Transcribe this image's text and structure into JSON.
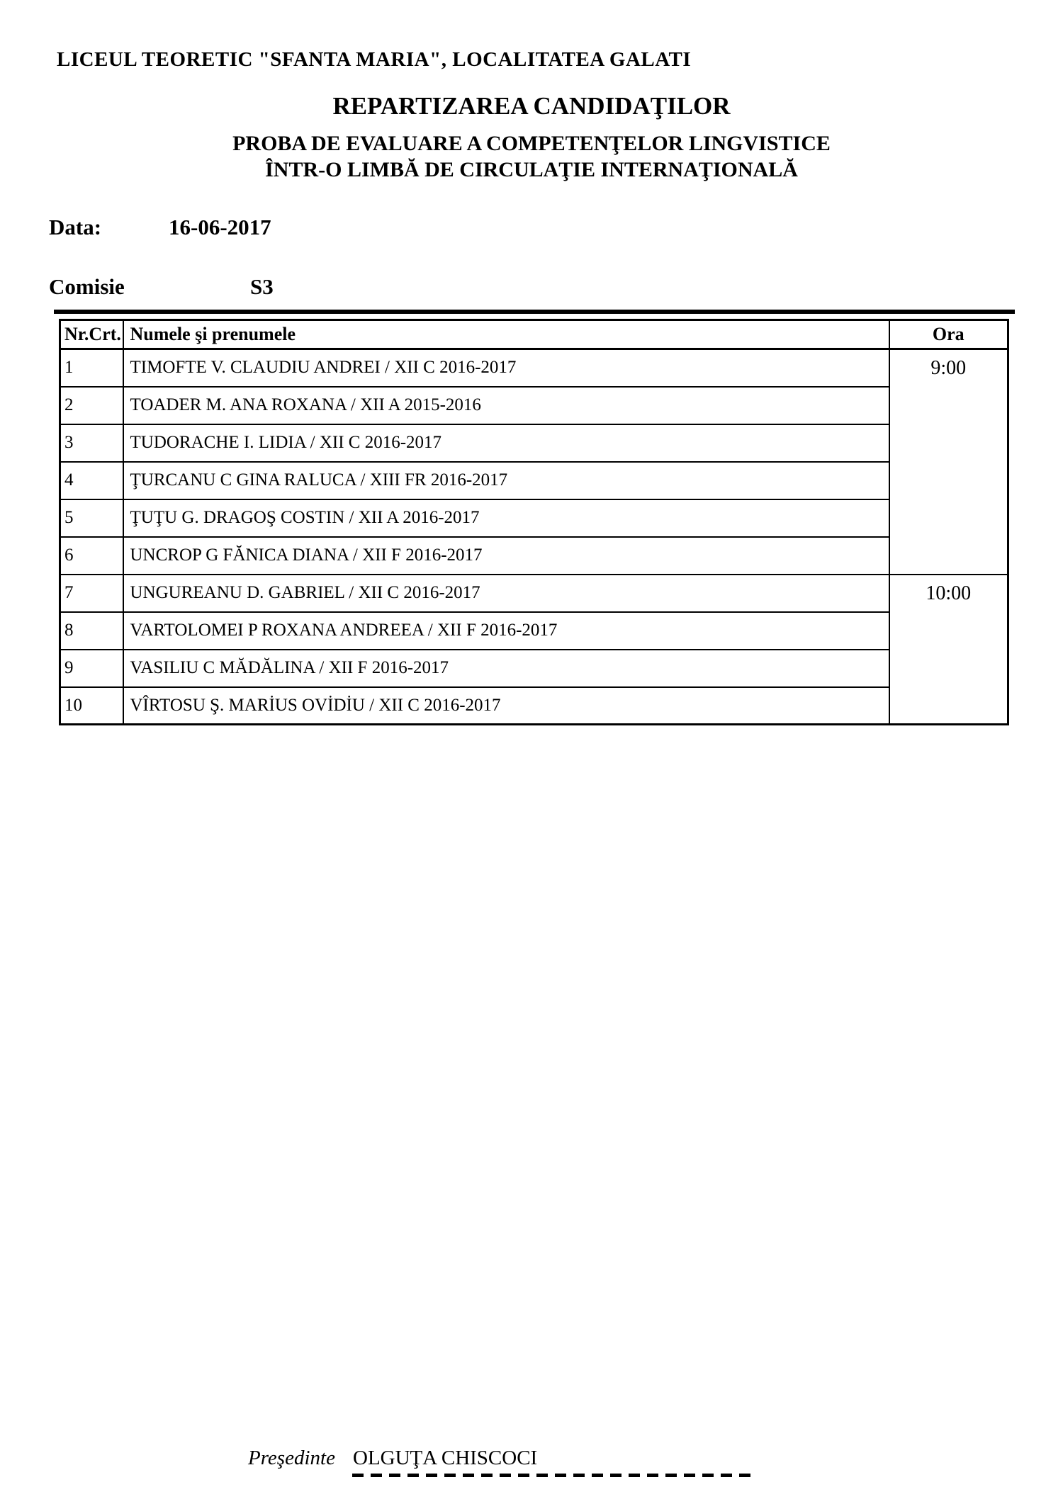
{
  "header": {
    "school_name": "LICEUL TEORETIC \"SFANTA MARIA\", LOCALITATEA GALATI",
    "title": "REPARTIZAREA CANDIDAŢILOR",
    "subtitle_line1": "PROBA DE EVALUARE A COMPETENŢELOR LINGVISTICE",
    "subtitle_line2": "ÎNTR-O LIMBĂ DE CIRCULAŢIE INTERNAŢIONALĂ",
    "date_label": "Data:",
    "date_value": "16-06-2017",
    "committee_label": "Comisie",
    "committee_value": "S3"
  },
  "table": {
    "headers": {
      "nr": "Nr.Crt.",
      "name": "Numele şi prenumele",
      "hour": "Ora"
    },
    "rows": [
      {
        "nr": "1",
        "name": "TIMOFTE V. CLAUDIU ANDREI / XII C 2016-2017",
        "hour": "9:00",
        "hour_span": 6
      },
      {
        "nr": "2",
        "name": "TOADER M. ANA ROXANA / XII A 2015-2016"
      },
      {
        "nr": "3",
        "name": "TUDORACHE I. LIDIA / XII C 2016-2017"
      },
      {
        "nr": "4",
        "name": "ŢURCANU C GINA RALUCA / XIII FR 2016-2017"
      },
      {
        "nr": "5",
        "name": "ŢUŢU G. DRAGOŞ COSTIN / XII A 2016-2017"
      },
      {
        "nr": "6",
        "name": "UNCROP G FĂNICA DIANA / XII F 2016-2017"
      },
      {
        "nr": "7",
        "name": "UNGUREANU D. GABRIEL / XII C 2016-2017",
        "hour": "10:00",
        "hour_span": 4
      },
      {
        "nr": "8",
        "name": "VARTOLOMEI P ROXANA ANDREEA / XII F 2016-2017"
      },
      {
        "nr": "9",
        "name": "VASILIU C MĂDĂLINA / XII F 2016-2017"
      },
      {
        "nr": "10",
        "name": "VÎRTOSU Ş. MARİUS OVİDİU / XII C 2016-2017"
      }
    ]
  },
  "footer": {
    "president_label": "Preşedinte",
    "president_name": "OLGUŢA CHISCOCI"
  }
}
